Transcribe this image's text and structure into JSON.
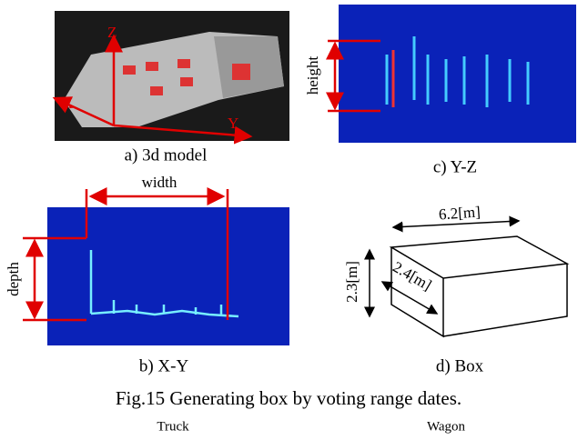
{
  "panels": {
    "a": {
      "caption": "a) 3d model",
      "axes": [
        "X",
        "Y",
        "Z"
      ]
    },
    "b": {
      "caption": "b) X-Y",
      "width_label": "width",
      "depth_label": "depth"
    },
    "c": {
      "caption": "c) Y-Z",
      "height_label": "height"
    },
    "d": {
      "caption": "d) Box",
      "length": "6.2[m]",
      "height": "2.3[m]",
      "width": "2.4[m]"
    }
  },
  "figure_caption": "Fig.15 Generating box by voting range dates.",
  "sublabels": [
    "Truck",
    "Wagon"
  ]
}
